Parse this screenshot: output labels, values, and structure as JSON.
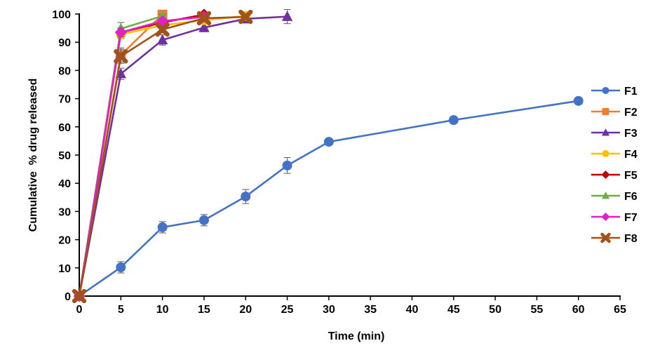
{
  "chart_data": {
    "type": "line",
    "title": "",
    "xlabel": "Time (min)",
    "ylabel": "Cumulative  % drug released",
    "xlim": [
      0,
      65
    ],
    "ylim": [
      0,
      100
    ],
    "x_ticks": [
      "0",
      "5",
      "10",
      "15",
      "20",
      "25",
      "30",
      "35",
      "40",
      "45",
      "50",
      "55",
      "60",
      "65"
    ],
    "y_ticks": [
      "0",
      "10",
      "20",
      "30",
      "40",
      "50",
      "60",
      "70",
      "80",
      "90",
      "100"
    ],
    "grid": false,
    "legend_position": "right",
    "series": [
      {
        "name": "F1",
        "color": "#4472C4",
        "marker": "circle",
        "x": [
          0,
          5,
          10,
          15,
          20,
          25,
          30,
          45,
          60
        ],
        "values": [
          0,
          10.2,
          24.4,
          26.9,
          35.3,
          46.3,
          54.7,
          62.4,
          69.2
        ],
        "errors": [
          0.5,
          2,
          2,
          2,
          2.5,
          2.8,
          0,
          0,
          0
        ]
      },
      {
        "name": "F2",
        "color": "#ED7D31",
        "marker": "square",
        "x": [
          0,
          5,
          10
        ],
        "values": [
          0,
          85.5,
          99.8
        ],
        "errors": [
          0.5,
          2.5,
          0
        ]
      },
      {
        "name": "F3",
        "color": "#7030A0",
        "marker": "triangle",
        "x": [
          0,
          5,
          10,
          15,
          20,
          25
        ],
        "values": [
          0,
          78.8,
          90.8,
          95.2,
          98.3,
          99.1
        ],
        "errors": [
          0.5,
          2,
          1.8,
          1.5,
          1.5,
          2.5
        ]
      },
      {
        "name": "F4",
        "color": "#FFC000",
        "marker": "circle",
        "x": [
          0,
          5,
          10,
          15,
          20
        ],
        "values": [
          0,
          92.8,
          96,
          97.8,
          99.3
        ],
        "errors": [
          0.5,
          1.5,
          1,
          1,
          0.5
        ]
      },
      {
        "name": "F5",
        "color": "#C00000",
        "marker": "diamond",
        "x": [
          0,
          5,
          10,
          15
        ],
        "values": [
          0,
          93.5,
          97,
          99.8
        ],
        "errors": [
          0.5,
          1.5,
          1,
          0.5
        ]
      },
      {
        "name": "F6",
        "color": "#70AD47",
        "marker": "triangle",
        "x": [
          0,
          5,
          10
        ],
        "values": [
          0,
          94.8,
          99.3
        ],
        "errors": [
          0.5,
          2.2,
          0.5
        ]
      },
      {
        "name": "F7",
        "color": "#E020C8",
        "marker": "diamond",
        "x": [
          0,
          5,
          10,
          15
        ],
        "values": [
          0,
          93.5,
          97.5,
          99
        ],
        "errors": [
          0.5,
          1.5,
          1,
          0.5
        ]
      },
      {
        "name": "F8",
        "color": "#A0521A",
        "marker": "x",
        "x": [
          0,
          5,
          10,
          15,
          20
        ],
        "values": [
          0,
          85,
          94.5,
          98.5,
          99
        ],
        "errors": [
          0.5,
          2.5,
          1.2,
          1,
          0.8
        ]
      }
    ]
  }
}
